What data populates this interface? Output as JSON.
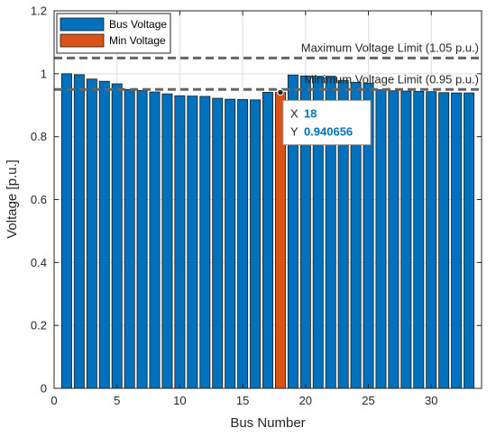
{
  "chart_data": {
    "type": "bar",
    "xlabel": "Bus Number",
    "ylabel": "Voltage [p.u.]",
    "xlim": [
      0,
      34
    ],
    "ylim": [
      0,
      1.2
    ],
    "x_ticks": [
      0,
      5,
      10,
      15,
      20,
      25,
      30
    ],
    "y_ticks": [
      0,
      0.2,
      0.4,
      0.6,
      0.8,
      1,
      1.2
    ],
    "grid": true,
    "legend": {
      "placement": "top-left",
      "entries": [
        {
          "name": "Bus Voltage",
          "color": "#0072BD"
        },
        {
          "name": "Min Voltage",
          "color": "#D95319"
        }
      ]
    },
    "series": [
      {
        "name": "Bus Voltage",
        "color": "#0072BD",
        "x": [
          1,
          2,
          3,
          4,
          5,
          6,
          7,
          8,
          9,
          10,
          11,
          12,
          13,
          14,
          15,
          16,
          17,
          19,
          20,
          21,
          22,
          23,
          24,
          25,
          26,
          27,
          28,
          29,
          30,
          31,
          32,
          33
        ],
        "values": [
          1.0,
          0.997,
          0.983,
          0.976,
          0.968,
          0.95,
          0.947,
          0.942,
          0.936,
          0.93,
          0.929,
          0.928,
          0.922,
          0.919,
          0.918,
          0.917,
          0.941,
          0.996,
          0.993,
          0.992,
          0.992,
          0.979,
          0.973,
          0.97,
          0.949,
          0.946,
          0.945,
          0.944,
          0.943,
          0.94,
          0.939,
          0.939
        ],
        "display_note": ""
      },
      {
        "name": "Min Voltage",
        "color": "#D95319",
        "x": [
          18
        ],
        "values": [
          0.940656
        ]
      }
    ],
    "reference_lines": [
      {
        "label": "Maximum Voltage Limit (1.05 p.u.)",
        "y": 1.05,
        "color": "#666666",
        "style": "dashed"
      },
      {
        "label": "Minimum Voltage Limit (0.95 p.u.)",
        "y": 0.95,
        "color": "#666666",
        "style": "dashed"
      }
    ],
    "datatip": {
      "x_label": "X",
      "x_value": "18",
      "y_label": "Y",
      "y_value": "0.940656",
      "anchor_x": 18,
      "anchor_y": 0.940656,
      "value_color": "#0072BD"
    }
  }
}
